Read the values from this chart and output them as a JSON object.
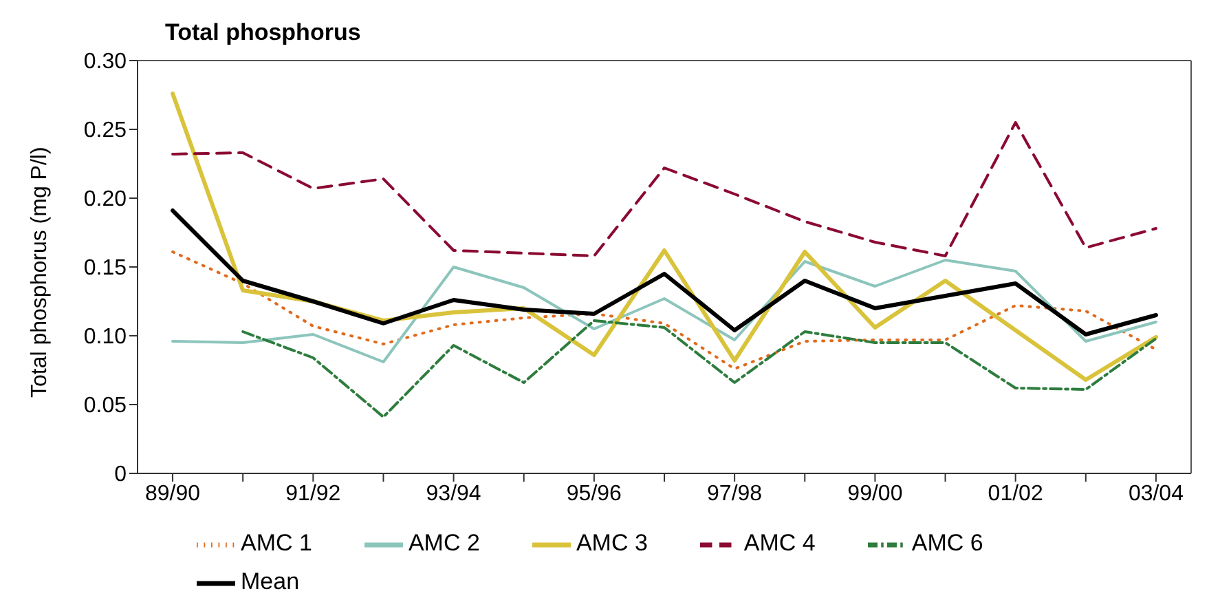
{
  "chart_data": {
    "type": "line",
    "title": "Total phosphorus",
    "ylabel": "Total phosphorus (mg P/l)",
    "categories": [
      "89/90",
      null,
      "91/92",
      null,
      "93/94",
      null,
      "95/96",
      null,
      "97/98",
      null,
      "99/00",
      null,
      "01/02",
      null,
      "03/04"
    ],
    "series": [
      {
        "name": "AMC 1",
        "color": "#e06a1b",
        "line_style": "dotted",
        "values": [
          0.161,
          0.138,
          0.107,
          0.094,
          0.108,
          0.113,
          0.116,
          0.109,
          0.076,
          0.096,
          0.097,
          0.097,
          0.122,
          0.118,
          0.09
        ]
      },
      {
        "name": "AMC 2",
        "color": "#8cc5bc",
        "line_style": "solid",
        "values": [
          0.096,
          0.095,
          0.101,
          0.081,
          0.15,
          0.135,
          0.105,
          0.127,
          0.097,
          0.154,
          0.136,
          0.155,
          0.147,
          0.096,
          0.11
        ]
      },
      {
        "name": "AMC 3",
        "color": "#d9c33b",
        "line_style": "solid",
        "values": [
          0.276,
          0.133,
          0.125,
          0.111,
          0.117,
          0.12,
          0.086,
          0.162,
          0.082,
          0.161,
          0.106,
          0.14,
          0.104,
          0.068,
          0.099
        ]
      },
      {
        "name": "AMC 4",
        "color": "#8b0a32",
        "line_style": "dashed",
        "values": [
          0.232,
          0.233,
          0.207,
          0.214,
          0.162,
          0.16,
          0.158,
          0.222,
          0.203,
          0.183,
          0.168,
          0.158,
          0.255,
          0.164,
          0.178
        ]
      },
      {
        "name": "AMC 6",
        "color": "#2e7d3e",
        "line_style": "dashdot",
        "values": [
          null,
          0.103,
          0.084,
          0.041,
          0.093,
          0.066,
          0.111,
          0.106,
          0.066,
          0.103,
          0.095,
          0.095,
          0.062,
          0.061,
          0.098
        ]
      },
      {
        "name": "Mean",
        "color": "#000000",
        "line_style": "solid",
        "values": [
          0.191,
          0.14,
          0.125,
          0.109,
          0.126,
          0.119,
          0.116,
          0.145,
          0.104,
          0.14,
          0.12,
          0.129,
          0.138,
          0.101,
          0.115
        ]
      }
    ],
    "ylim": [
      0,
      0.3
    ],
    "yticks": [
      {
        "value": 0,
        "label": "0"
      },
      {
        "value": 0.05,
        "label": "0.05"
      },
      {
        "value": 0.1,
        "label": "0.10"
      },
      {
        "value": 0.15,
        "label": "0.15"
      },
      {
        "value": 0.2,
        "label": "0.20"
      },
      {
        "value": 0.25,
        "label": "0.25"
      },
      {
        "value": 0.3,
        "label": "0.30"
      }
    ],
    "grid": false,
    "legend": "bottom",
    "marker": "none"
  }
}
